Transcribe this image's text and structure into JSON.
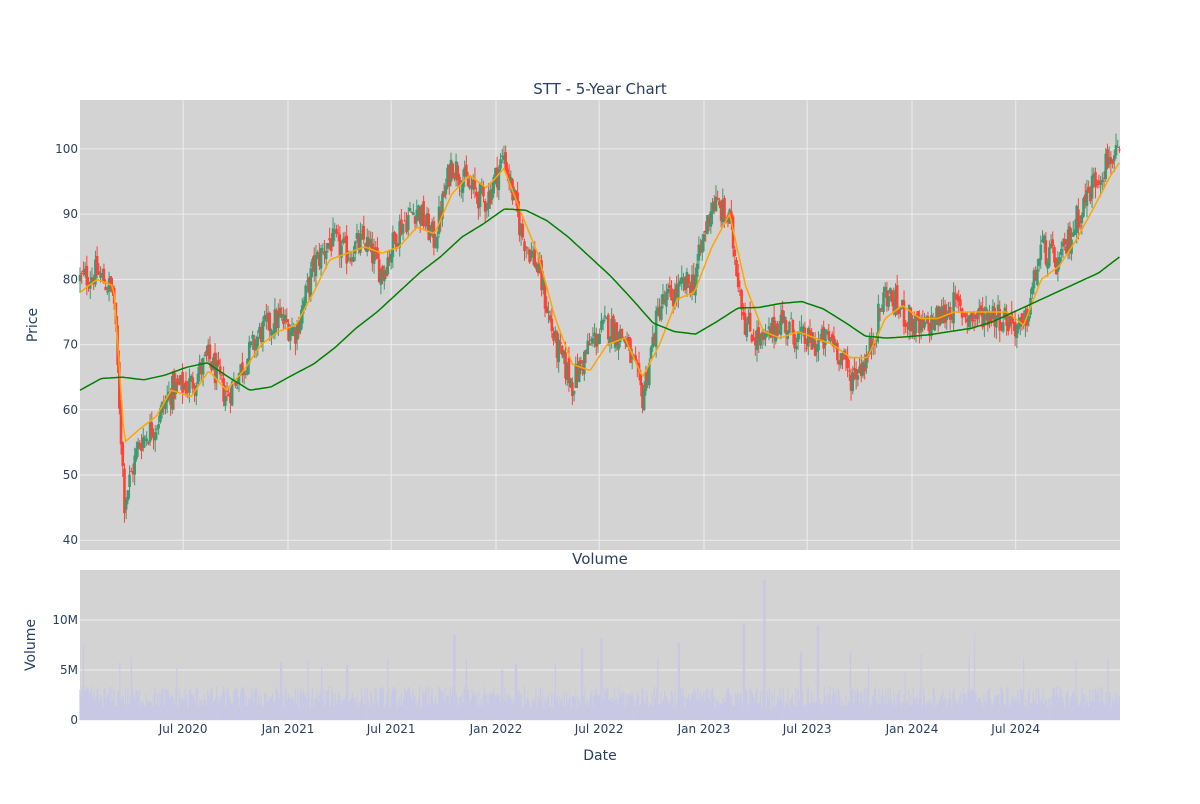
{
  "chart_data": [
    {
      "type": "candlestick",
      "title": "STT - 5-Year Chart",
      "xlabel": "",
      "ylabel": "Price",
      "ylim": [
        38.5,
        107.5
      ],
      "yticks": [
        40,
        50,
        60,
        70,
        80,
        90,
        100
      ],
      "xlim": [
        "2020-01-02",
        "2024-12-31"
      ],
      "grid": true,
      "background": "#d3d3d3",
      "colors": {
        "up": "#3d9970",
        "down": "#ff4136",
        "ma_short": "#ffa500",
        "ma_long": "#008000"
      },
      "x": [
        "2020-01-02",
        "2020-02-01",
        "2020-03-01",
        "2020-03-20",
        "2020-04-15",
        "2020-05-15",
        "2020-06-10",
        "2020-07-15",
        "2020-08-15",
        "2020-09-15",
        "2020-10-15",
        "2020-11-15",
        "2020-12-15",
        "2021-01-15",
        "2021-02-15",
        "2021-03-15",
        "2021-04-15",
        "2021-05-15",
        "2021-06-15",
        "2021-07-15",
        "2021-08-15",
        "2021-09-15",
        "2021-10-15",
        "2021-11-15",
        "2021-12-15",
        "2022-01-15",
        "2022-02-15",
        "2022-03-15",
        "2022-04-15",
        "2022-05-15",
        "2022-06-15",
        "2022-07-15",
        "2022-08-15",
        "2022-09-15",
        "2022-10-15",
        "2022-11-15",
        "2022-12-15",
        "2023-01-15",
        "2023-02-15",
        "2023-03-15",
        "2023-04-15",
        "2023-05-15",
        "2023-06-15",
        "2023-07-15",
        "2023-08-15",
        "2023-09-15",
        "2023-10-15",
        "2023-11-15",
        "2023-12-15",
        "2024-01-15",
        "2024-02-15",
        "2024-03-15",
        "2024-04-15",
        "2024-05-15",
        "2024-06-15",
        "2024-07-15",
        "2024-08-15",
        "2024-09-15",
        "2024-10-15",
        "2024-11-15",
        "2024-12-15",
        "2024-12-31"
      ],
      "close": [
        80,
        81,
        78,
        46,
        55,
        58,
        63,
        64,
        68,
        62,
        67,
        72,
        74,
        72,
        82,
        86,
        84,
        86,
        81,
        88,
        91,
        86,
        98,
        94,
        92,
        99,
        87,
        82,
        70,
        64,
        70,
        73,
        71,
        62,
        76,
        78,
        80,
        92,
        89,
        73,
        70,
        74,
        71,
        70,
        71,
        65,
        68,
        78,
        75,
        72,
        74,
        76,
        74,
        75,
        74,
        72,
        85,
        82,
        89,
        95,
        99,
        98
      ],
      "ma_short": [
        78,
        80,
        79,
        55,
        57,
        59,
        63,
        62,
        66,
        63,
        66,
        70,
        72,
        73,
        78,
        83,
        84,
        85,
        84,
        85,
        88,
        87,
        93,
        96,
        94,
        97,
        90,
        84,
        74,
        67,
        66,
        70,
        71,
        65,
        70,
        77,
        78,
        85,
        90,
        79,
        72,
        71,
        72,
        71,
        70,
        68,
        68,
        74,
        76,
        74,
        74,
        75,
        75,
        75,
        75,
        73,
        80,
        82,
        86,
        91,
        96,
        98
      ],
      "ma_long": [
        63,
        64.8,
        65,
        64.6,
        65.3,
        66.5,
        67.2,
        65,
        63,
        63.5,
        65.3,
        67,
        69.5,
        72.5,
        75,
        78,
        81,
        83.5,
        86.5,
        88.5,
        90.8,
        90.6,
        89,
        86.5,
        83.5,
        80.5,
        77,
        73.3,
        72,
        71.6,
        73.5,
        75.6,
        75.7,
        76.3,
        76.6,
        75.5,
        73.5,
        71.3,
        71,
        71.2,
        71.5,
        72,
        72.5,
        73.5,
        75,
        76.5,
        78,
        79.5,
        81,
        83.5
      ]
    },
    {
      "type": "bar",
      "title": "Volume",
      "xlabel": "Date",
      "ylabel": "Volume",
      "ylim": [
        0,
        15000000
      ],
      "yticks": [
        0,
        5000000,
        10000000
      ],
      "ytick_labels": [
        "0",
        "5M",
        "10M"
      ],
      "grid": true,
      "background": "#d3d3d3",
      "bar_color": "#c8c8e6",
      "xtick_labels": [
        "Jul 2020",
        "Jan 2021",
        "Jul 2021",
        "Jan 2022",
        "Jul 2022",
        "Jan 2023",
        "Jul 2023",
        "Jan 2024",
        "Jul 2024"
      ],
      "xtick_dates": [
        "2020-07-01",
        "2021-01-01",
        "2021-07-01",
        "2022-01-01",
        "2022-07-01",
        "2023-01-01",
        "2023-07-01",
        "2024-01-01",
        "2024-07-01"
      ],
      "spikes": [
        [
          "2020-01-02",
          3000000
        ],
        [
          "2020-01-08",
          7500000
        ],
        [
          "2020-03-12",
          5800000
        ],
        [
          "2020-04-01",
          6300000
        ],
        [
          "2020-06-20",
          5200000
        ],
        [
          "2020-12-20",
          5800000
        ],
        [
          "2021-02-05",
          6000000
        ],
        [
          "2021-03-01",
          5400000
        ],
        [
          "2021-04-15",
          5500000
        ],
        [
          "2021-06-25",
          6100000
        ],
        [
          "2021-10-20",
          8500000
        ],
        [
          "2021-11-10",
          6000000
        ],
        [
          "2022-01-12",
          5000000
        ],
        [
          "2022-02-05",
          5600000
        ],
        [
          "2022-04-15",
          5600000
        ],
        [
          "2022-06-01",
          7200000
        ],
        [
          "2022-07-05",
          8200000
        ],
        [
          "2022-10-12",
          6200000
        ],
        [
          "2022-11-18",
          7700000
        ],
        [
          "2023-03-12",
          9700000
        ],
        [
          "2023-04-17",
          14000000
        ],
        [
          "2023-06-20",
          6800000
        ],
        [
          "2023-07-20",
          9500000
        ],
        [
          "2023-09-15",
          6800000
        ],
        [
          "2023-10-17",
          5300000
        ],
        [
          "2023-12-20",
          4800000
        ],
        [
          "2024-01-17",
          6600000
        ],
        [
          "2024-04-10",
          6500000
        ],
        [
          "2024-04-20",
          8700000
        ],
        [
          "2024-07-15",
          6200000
        ],
        [
          "2024-10-15",
          6000000
        ],
        [
          "2024-12-10",
          6200000
        ]
      ]
    }
  ]
}
